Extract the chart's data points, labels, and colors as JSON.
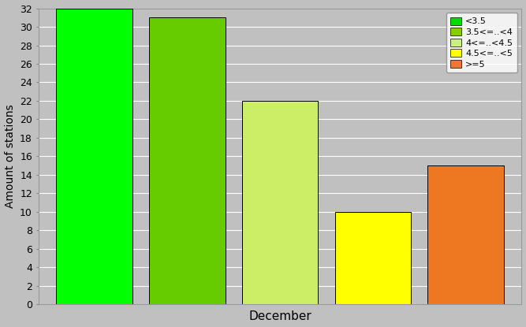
{
  "xlabel": "December",
  "ylabel": "Amount of stations",
  "ylim": [
    0,
    32
  ],
  "yticks": [
    0,
    2,
    4,
    6,
    8,
    10,
    12,
    14,
    16,
    18,
    20,
    22,
    24,
    26,
    28,
    30,
    32
  ],
  "categories": [
    "<3.5",
    "3.5<=..<4",
    "4<=..<4.5",
    "4.5<=..<5",
    ">=5"
  ],
  "values": [
    32,
    31,
    22,
    10,
    15
  ],
  "bar_colors": [
    "#00ff00",
    "#66cc00",
    "#ccee66",
    "#ffff00",
    "#ee7722"
  ],
  "legend_colors": [
    "#00dd00",
    "#88cc00",
    "#ccee88",
    "#ffff00",
    "#ee7733"
  ],
  "background_color": "#c0c0c0",
  "plot_bg_color": "#c0c0c0",
  "bar_edge_color": "#000000",
  "grid_color": "#ffffff",
  "legend_labels": [
    "<3.5",
    "3.5<=..<4",
    "4<=..<4.5",
    "4.5<=..<5",
    ">=5"
  ]
}
